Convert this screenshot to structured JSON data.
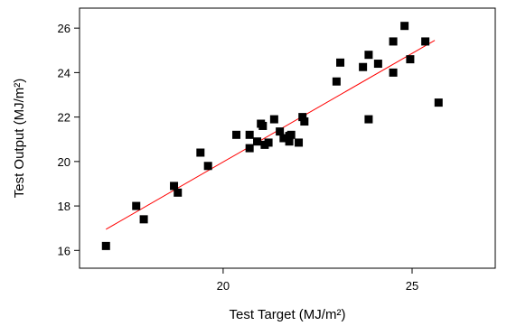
{
  "chart_data": {
    "type": "scatter",
    "xlabel": "Test Target (MJ/m²)",
    "ylabel": "Test Output (MJ/m²)",
    "xlim": [
      16.2,
      27.2
    ],
    "ylim": [
      15.2,
      26.9
    ],
    "xticks": [
      20,
      25
    ],
    "yticks": [
      16,
      18,
      20,
      22,
      24,
      26
    ],
    "x_tick_labels": [
      "20",
      "25"
    ],
    "y_tick_labels": [
      "16",
      "18",
      "20",
      "22",
      "24",
      "26"
    ],
    "grid": false,
    "marker_color": "#000000",
    "fit_color": "#ff0000",
    "points": [
      {
        "x": 16.9,
        "y": 16.2
      },
      {
        "x": 17.7,
        "y": 18.0
      },
      {
        "x": 17.9,
        "y": 17.4
      },
      {
        "x": 18.7,
        "y": 18.9
      },
      {
        "x": 18.8,
        "y": 18.6
      },
      {
        "x": 19.4,
        "y": 20.4
      },
      {
        "x": 19.6,
        "y": 19.8
      },
      {
        "x": 20.35,
        "y": 21.2
      },
      {
        "x": 20.7,
        "y": 20.6
      },
      {
        "x": 20.7,
        "y": 21.2
      },
      {
        "x": 20.9,
        "y": 20.9
      },
      {
        "x": 21.0,
        "y": 21.7
      },
      {
        "x": 21.05,
        "y": 21.6
      },
      {
        "x": 21.1,
        "y": 20.75
      },
      {
        "x": 21.2,
        "y": 20.85
      },
      {
        "x": 21.35,
        "y": 21.9
      },
      {
        "x": 21.5,
        "y": 21.35
      },
      {
        "x": 21.6,
        "y": 21.05
      },
      {
        "x": 21.75,
        "y": 21.15
      },
      {
        "x": 21.75,
        "y": 20.9
      },
      {
        "x": 21.8,
        "y": 21.2
      },
      {
        "x": 22.0,
        "y": 20.85
      },
      {
        "x": 22.1,
        "y": 22.0
      },
      {
        "x": 22.15,
        "y": 21.8
      },
      {
        "x": 23.0,
        "y": 23.6
      },
      {
        "x": 23.1,
        "y": 24.45
      },
      {
        "x": 23.7,
        "y": 24.25
      },
      {
        "x": 23.85,
        "y": 24.8
      },
      {
        "x": 23.85,
        "y": 21.9
      },
      {
        "x": 24.1,
        "y": 24.4
      },
      {
        "x": 24.5,
        "y": 25.4
      },
      {
        "x": 24.5,
        "y": 24.0
      },
      {
        "x": 24.8,
        "y": 26.1
      },
      {
        "x": 24.95,
        "y": 24.6
      },
      {
        "x": 25.35,
        "y": 25.4
      },
      {
        "x": 25.7,
        "y": 22.65
      }
    ],
    "fit_line": {
      "x": [
        16.9,
        25.6
      ],
      "y": [
        16.95,
        25.45
      ]
    }
  }
}
